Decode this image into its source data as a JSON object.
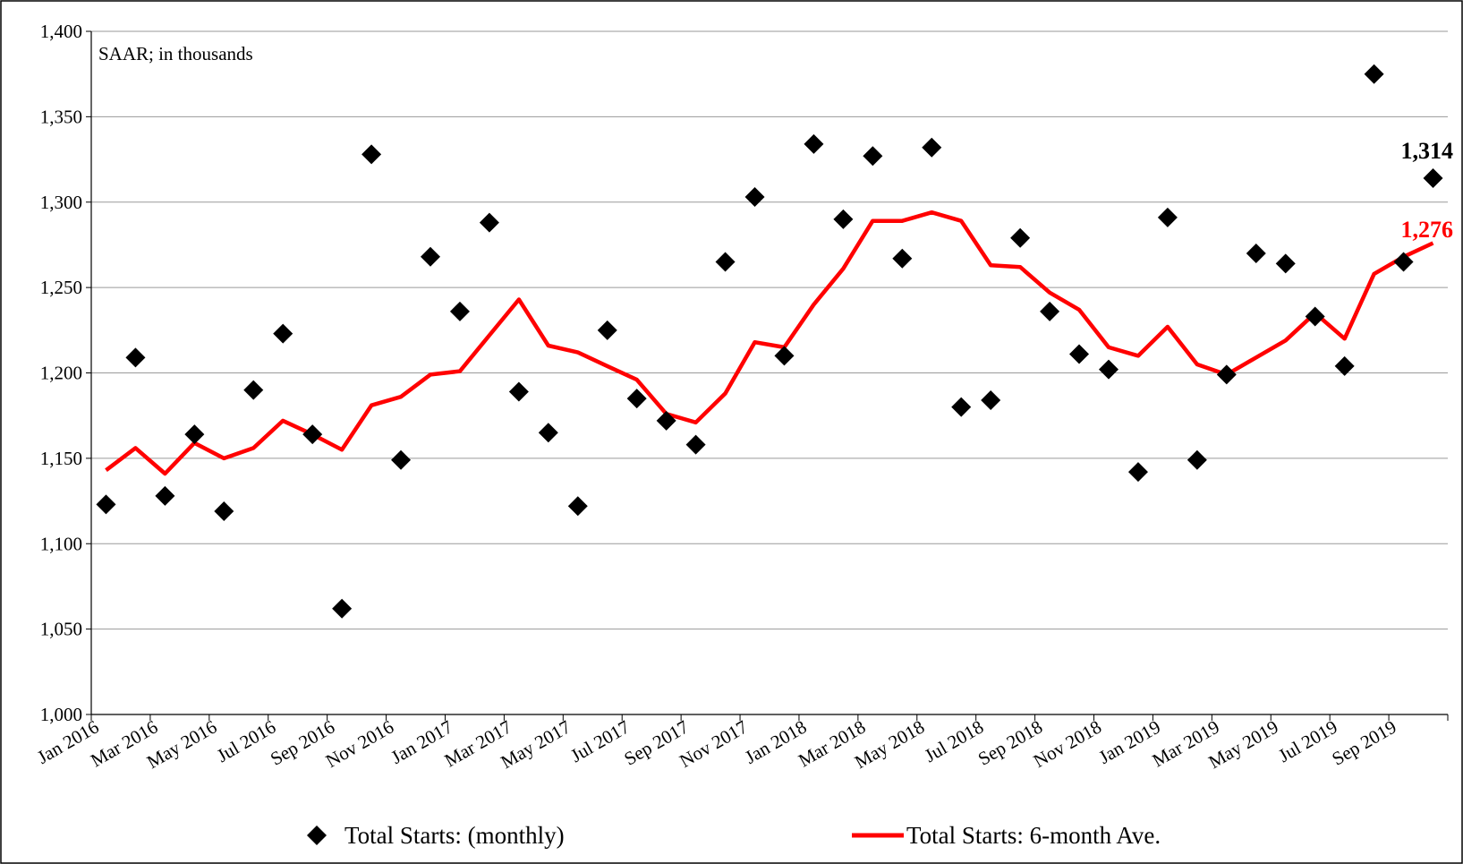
{
  "chart_data": {
    "type": "line",
    "annotation": "SAAR; in thousands",
    "ylim": [
      1000,
      1400
    ],
    "y_ticks": [
      1000,
      1050,
      1100,
      1150,
      1200,
      1250,
      1300,
      1350,
      1400
    ],
    "y_tick_labels": [
      "1,000",
      "1,050",
      "1,100",
      "1,150",
      "1,200",
      "1,250",
      "1,300",
      "1,350",
      "1,400"
    ],
    "x": [
      "Jan 2016",
      "Feb 2016",
      "Mar 2016",
      "Apr 2016",
      "May 2016",
      "Jun 2016",
      "Jul 2016",
      "Aug 2016",
      "Sep 2016",
      "Oct 2016",
      "Nov 2016",
      "Dec 2016",
      "Jan 2017",
      "Feb 2017",
      "Mar 2017",
      "Apr 2017",
      "May 2017",
      "Jun 2017",
      "Jul 2017",
      "Aug 2017",
      "Sep 2017",
      "Oct 2017",
      "Nov 2017",
      "Dec 2017",
      "Jan 2018",
      "Feb 2018",
      "Mar 2018",
      "Apr 2018",
      "May 2018",
      "Jun 2018",
      "Jul 2018",
      "Aug 2018",
      "Sep 2018",
      "Oct 2018",
      "Nov 2018",
      "Dec 2018",
      "Jan 2019",
      "Feb 2019",
      "Mar 2019",
      "Apr 2019",
      "May 2019",
      "Jun 2019",
      "Jul 2019",
      "Aug 2019",
      "Sep 2019",
      "Oct 2019"
    ],
    "x_tick_labels": [
      "Jan 2016",
      "Mar 2016",
      "May 2016",
      "Jul 2016",
      "Sep 2016",
      "Nov 2016",
      "Jan 2017",
      "Mar 2017",
      "May 2017",
      "Jul 2017",
      "Sep 2017",
      "Nov 2017",
      "Jan 2018",
      "Mar 2018",
      "May 2018",
      "Jul 2018",
      "Sep 2018",
      "Nov 2018",
      "Jan 2019",
      "Mar 2019",
      "May 2019",
      "Jul 2019",
      "Sep 2019"
    ],
    "series": [
      {
        "name": "Total Starts: (monthly)",
        "style": "scatter",
        "marker": "diamond",
        "color": "#000000",
        "values": [
          1123,
          1209,
          1128,
          1164,
          1119,
          1190,
          1223,
          1164,
          1062,
          1328,
          1149,
          1268,
          1236,
          1288,
          1189,
          1165,
          1122,
          1225,
          1185,
          1172,
          1158,
          1265,
          1303,
          1210,
          1334,
          1290,
          1327,
          1267,
          1332,
          1180,
          1184,
          1279,
          1236,
          1211,
          1202,
          1142,
          1291,
          1149,
          1199,
          1270,
          1264,
          1233,
          1204,
          1375,
          1265,
          1314
        ]
      },
      {
        "name": "Total Starts: 6-month Ave.",
        "style": "line",
        "color": "#ff0000",
        "values": [
          1143,
          1156,
          1141,
          1159,
          1150,
          1156,
          1172,
          1164,
          1155,
          1181,
          1186,
          1199,
          1201,
          1222,
          1243,
          1216,
          1212,
          1204,
          1196,
          1176,
          1171,
          1188,
          1218,
          1215,
          1240,
          1261,
          1289,
          1289,
          1294,
          1289,
          1263,
          1262,
          1247,
          1237,
          1215,
          1210,
          1227,
          1205,
          1199,
          1209,
          1219,
          1235,
          1220,
          1258,
          1268,
          1276
        ]
      }
    ],
    "end_labels": {
      "monthly": "1,314",
      "average": "1,276"
    },
    "legend_position": "bottom",
    "grid": true
  }
}
